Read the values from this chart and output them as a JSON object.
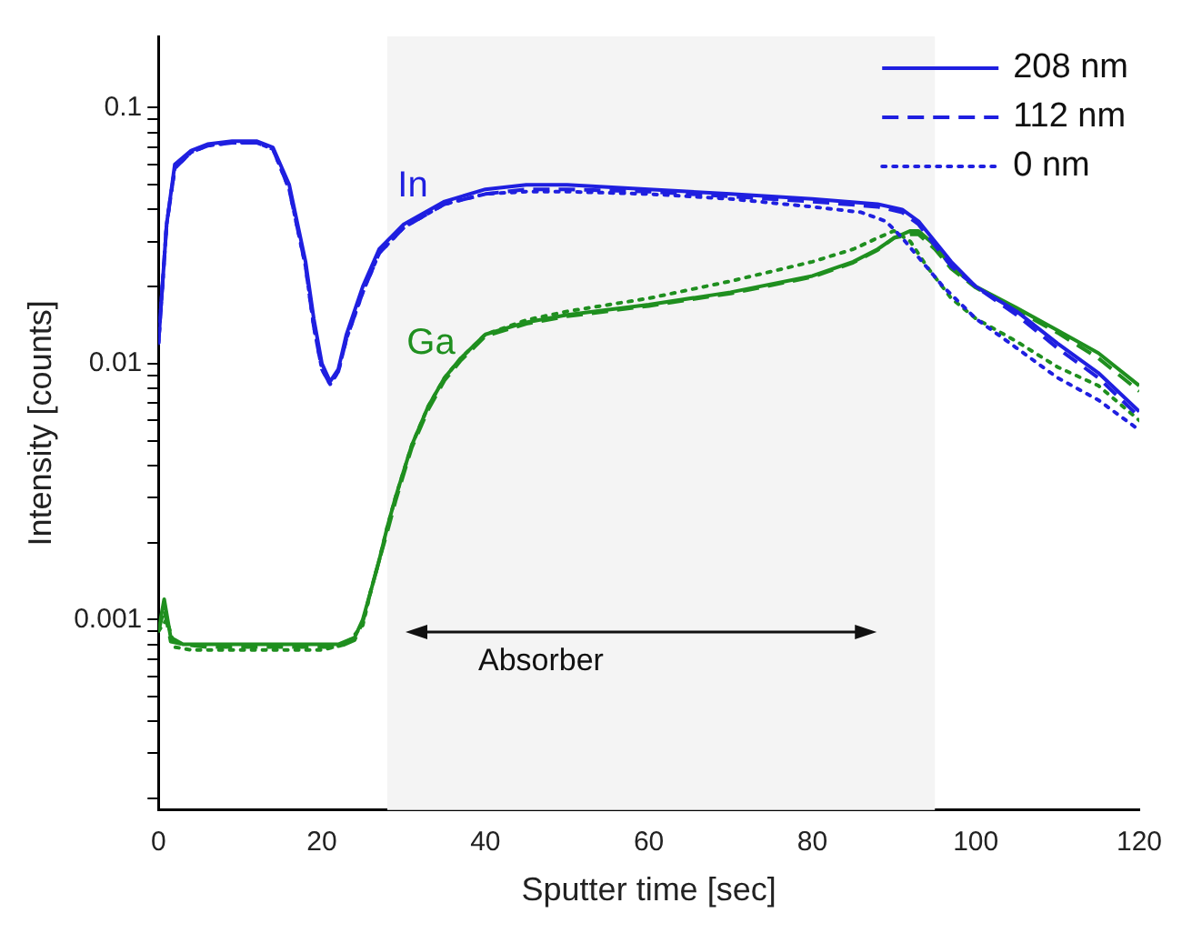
{
  "chart_data": {
    "type": "line",
    "xlabel": "Sputter time [sec]",
    "ylabel": "Intensity [counts]",
    "log": "y",
    "xlim": [
      0,
      120
    ],
    "xticks": [
      0,
      20,
      40,
      60,
      80,
      100,
      120
    ],
    "ylim": [
      0.00018,
      0.19
    ],
    "yticks": [
      {
        "value": 0.0002,
        "label": null
      },
      {
        "value": 0.0003,
        "label": null
      },
      {
        "value": 0.0004,
        "label": null
      },
      {
        "value": 0.0005,
        "label": null
      },
      {
        "value": 0.0006,
        "label": null
      },
      {
        "value": 0.0007,
        "label": null
      },
      {
        "value": 0.0008,
        "label": null
      },
      {
        "value": 0.0009,
        "label": null
      },
      0.001,
      {
        "value": 0.002,
        "label": null
      },
      {
        "value": 0.003,
        "label": null
      },
      {
        "value": 0.004,
        "label": null
      },
      {
        "value": 0.005,
        "label": null
      },
      {
        "value": 0.006,
        "label": null
      },
      {
        "value": 0.007,
        "label": null
      },
      {
        "value": 0.008,
        "label": null
      },
      {
        "value": 0.009,
        "label": null
      },
      0.01,
      {
        "value": 0.02,
        "label": null
      },
      {
        "value": 0.03,
        "label": null
      },
      {
        "value": 0.04,
        "label": null
      },
      {
        "value": 0.05,
        "label": null
      },
      {
        "value": 0.06,
        "label": null
      },
      {
        "value": 0.07,
        "label": null
      },
      {
        "value": 0.08,
        "label": null
      },
      {
        "value": 0.09,
        "label": null
      },
      0.1
    ],
    "grid": false,
    "legend": "top right",
    "marker": "none",
    "bands": [
      {
        "axis": "x",
        "from": 28,
        "to": 95,
        "label": "Absorber",
        "color": "#f4f4f4"
      }
    ],
    "annotations": [
      "In",
      "Ga"
    ],
    "series": [
      {
        "name": "208 nm",
        "color": "#1f1fe0",
        "line_style": "solid",
        "x": [
          0,
          1,
          2,
          4,
          6,
          9,
          12,
          14,
          16,
          18,
          19,
          20,
          21,
          22,
          23,
          25,
          27,
          30,
          35,
          40,
          45,
          50,
          60,
          70,
          80,
          88,
          91,
          93,
          95,
          97,
          100,
          105,
          110,
          115,
          120
        ],
        "values": [
          0.012,
          0.035,
          0.06,
          0.068,
          0.072,
          0.074,
          0.074,
          0.07,
          0.05,
          0.025,
          0.015,
          0.01,
          0.0085,
          0.0095,
          0.013,
          0.02,
          0.028,
          0.035,
          0.043,
          0.048,
          0.05,
          0.05,
          0.048,
          0.046,
          0.044,
          0.042,
          0.04,
          0.036,
          0.03,
          0.025,
          0.02,
          0.016,
          0.012,
          0.0092,
          0.0065
        ]
      },
      {
        "name": "112 nm",
        "color": "#1f1fe0",
        "line_style": "dashed",
        "x": [
          0,
          1,
          2,
          4,
          6,
          9,
          12,
          14,
          16,
          18,
          19,
          20,
          21,
          22,
          23,
          25,
          27,
          30,
          35,
          40,
          45,
          50,
          60,
          70,
          80,
          88,
          91,
          93,
          95,
          97,
          100,
          105,
          110,
          115,
          120
        ],
        "values": [
          0.012,
          0.035,
          0.058,
          0.067,
          0.071,
          0.073,
          0.073,
          0.069,
          0.048,
          0.024,
          0.014,
          0.0095,
          0.0083,
          0.0093,
          0.0125,
          0.019,
          0.027,
          0.034,
          0.042,
          0.046,
          0.048,
          0.048,
          0.047,
          0.045,
          0.043,
          0.041,
          0.039,
          0.035,
          0.029,
          0.024,
          0.02,
          0.0155,
          0.0115,
          0.0088,
          0.0062
        ]
      },
      {
        "name": "0 nm",
        "color": "#1f1fe0",
        "line_style": "dotted",
        "x": [
          0,
          1,
          2,
          4,
          6,
          9,
          12,
          14,
          16,
          18,
          19,
          20,
          21,
          22,
          23,
          25,
          27,
          30,
          35,
          40,
          45,
          50,
          60,
          70,
          80,
          86,
          89,
          91,
          93,
          96,
          100,
          105,
          110,
          115,
          120
        ],
        "values": [
          0.012,
          0.035,
          0.058,
          0.067,
          0.071,
          0.073,
          0.073,
          0.069,
          0.048,
          0.024,
          0.014,
          0.0095,
          0.0083,
          0.0093,
          0.0125,
          0.019,
          0.027,
          0.034,
          0.042,
          0.046,
          0.047,
          0.047,
          0.046,
          0.044,
          0.041,
          0.039,
          0.036,
          0.031,
          0.026,
          0.02,
          0.015,
          0.0115,
          0.0088,
          0.0072,
          0.0055
        ]
      },
      {
        "color": "#1f8f1f",
        "line_style": "solid",
        "x": [
          0,
          0.7,
          1.5,
          3,
          6,
          10,
          14,
          18,
          22,
          24,
          25,
          26,
          27,
          28,
          29,
          30,
          31,
          33,
          35,
          37,
          40,
          45,
          50,
          60,
          70,
          80,
          85,
          88,
          90,
          92,
          93,
          95,
          97,
          100,
          105,
          110,
          115,
          120
        ],
        "values": [
          0.0009,
          0.0012,
          0.00085,
          0.0008,
          0.0008,
          0.0008,
          0.0008,
          0.0008,
          0.0008,
          0.00085,
          0.001,
          0.0013,
          0.0017,
          0.0023,
          0.003,
          0.0038,
          0.0048,
          0.0068,
          0.0088,
          0.0105,
          0.013,
          0.0145,
          0.0155,
          0.017,
          0.019,
          0.022,
          0.025,
          0.028,
          0.031,
          0.033,
          0.033,
          0.029,
          0.024,
          0.02,
          0.0165,
          0.0135,
          0.011,
          0.0082
        ]
      },
      {
        "color": "#1f8f1f",
        "line_style": "dashed",
        "x": [
          0,
          0.7,
          1.5,
          3,
          6,
          10,
          14,
          18,
          22,
          24,
          25,
          26,
          27,
          28,
          29,
          30,
          31,
          33,
          35,
          37,
          40,
          45,
          50,
          60,
          70,
          80,
          85,
          88,
          90,
          92,
          93,
          95,
          97,
          100,
          105,
          110,
          115,
          120
        ],
        "values": [
          0.0009,
          0.0011,
          0.00082,
          0.0008,
          0.00078,
          0.00078,
          0.00078,
          0.00078,
          0.00078,
          0.00083,
          0.00098,
          0.0013,
          0.0017,
          0.0022,
          0.0029,
          0.0037,
          0.0047,
          0.0066,
          0.0086,
          0.0103,
          0.0128,
          0.0143,
          0.0153,
          0.0168,
          0.0188,
          0.0218,
          0.0248,
          0.0278,
          0.031,
          0.032,
          0.032,
          0.028,
          0.0235,
          0.0198,
          0.0162,
          0.0132,
          0.0105,
          0.0078
        ]
      },
      {
        "color": "#1f8f1f",
        "line_style": "dotted",
        "x": [
          0,
          1,
          2,
          4,
          8,
          12,
          16,
          20,
          23,
          25,
          26,
          27,
          28,
          29,
          30,
          31,
          33,
          35,
          37,
          40,
          45,
          50,
          60,
          70,
          80,
          85,
          88,
          90,
          92,
          94,
          97,
          100,
          105,
          110,
          115,
          120
        ],
        "values": [
          0.0009,
          0.001,
          0.00078,
          0.00076,
          0.00076,
          0.00076,
          0.00076,
          0.00076,
          0.0008,
          0.00095,
          0.0013,
          0.0017,
          0.0023,
          0.003,
          0.0038,
          0.0048,
          0.0068,
          0.0088,
          0.0105,
          0.013,
          0.0148,
          0.016,
          0.018,
          0.021,
          0.025,
          0.028,
          0.031,
          0.033,
          0.03,
          0.024,
          0.018,
          0.015,
          0.0122,
          0.0097,
          0.0082,
          0.006
        ]
      }
    ]
  }
}
